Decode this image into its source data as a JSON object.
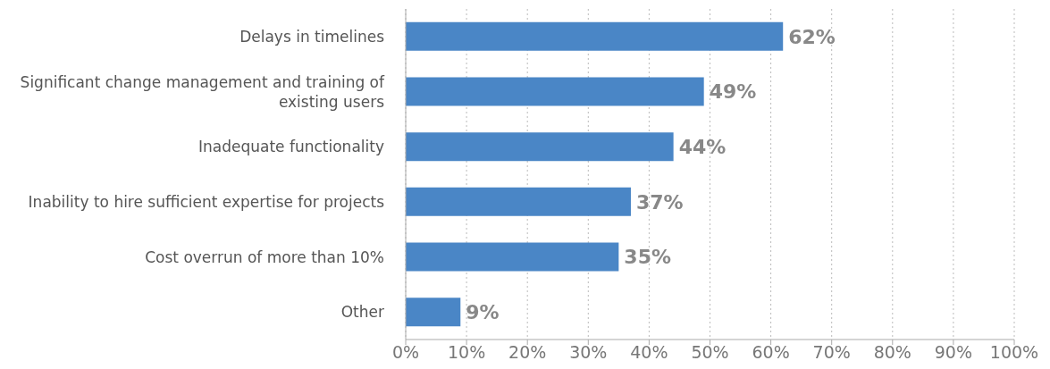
{
  "chart_data": {
    "type": "bar",
    "orientation": "horizontal",
    "categories": [
      "Delays in timelines",
      "Significant change management and training of existing users",
      "Inadequate functionality",
      "Inability to hire sufficient expertise for projects",
      "Cost overrun of more than 10%",
      "Other"
    ],
    "values": [
      62,
      49,
      44,
      37,
      35,
      9
    ],
    "color": "#4a86c6",
    "value_labels": [
      "62%",
      "49%",
      "44%",
      "37%",
      "35%",
      "9%"
    ],
    "xlim": [
      0,
      100
    ],
    "xticks": [
      {
        "value": 0,
        "label": "0%"
      },
      {
        "value": 10,
        "label": "10%"
      },
      {
        "value": 20,
        "label": "20%"
      },
      {
        "value": 30,
        "label": "30%"
      },
      {
        "value": 40,
        "label": "40%"
      },
      {
        "value": 50,
        "label": "50%"
      },
      {
        "value": 60,
        "label": "60%"
      },
      {
        "value": 70,
        "label": "70%"
      },
      {
        "value": 80,
        "label": "80%"
      },
      {
        "value": 90,
        "label": "90%"
      },
      {
        "value": 100,
        "label": "100%"
      }
    ],
    "grid": "x",
    "legend": false
  }
}
